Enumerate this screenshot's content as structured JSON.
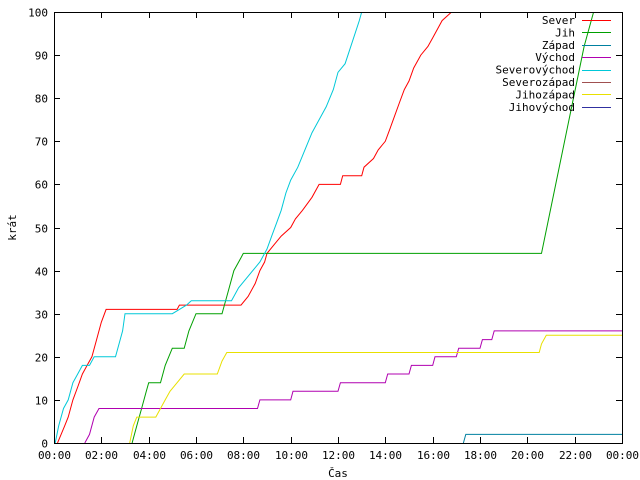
{
  "chart_data": {
    "type": "line",
    "title": "",
    "xlabel": "Čas",
    "ylabel": "krát",
    "xlim": [
      0,
      24
    ],
    "ylim": [
      0,
      100
    ],
    "x_ticks": [
      "00:00",
      "02:00",
      "04:00",
      "06:00",
      "08:00",
      "10:00",
      "12:00",
      "14:00",
      "16:00",
      "18:00",
      "20:00",
      "22:00",
      "00:00"
    ],
    "y_ticks": [
      "0",
      "10",
      "20",
      "30",
      "40",
      "50",
      "60",
      "70",
      "80",
      "90",
      "100"
    ],
    "grid": false,
    "legend_position": "top-right",
    "x_unit_note": "hours since 00:00",
    "series": [
      {
        "name": "Sever",
        "color": "#ff0000",
        "points": [
          [
            0.15,
            0
          ],
          [
            0.3,
            2
          ],
          [
            0.45,
            4
          ],
          [
            0.6,
            6
          ],
          [
            0.8,
            10
          ],
          [
            1.0,
            13
          ],
          [
            1.2,
            16
          ],
          [
            1.4,
            18
          ],
          [
            1.6,
            20
          ],
          [
            1.8,
            24
          ],
          [
            2.0,
            28
          ],
          [
            2.2,
            31
          ],
          [
            5.2,
            31
          ],
          [
            5.3,
            32
          ],
          [
            7.9,
            32
          ],
          [
            8.2,
            34
          ],
          [
            8.5,
            37
          ],
          [
            8.7,
            40
          ],
          [
            8.9,
            42
          ],
          [
            9.0,
            44
          ],
          [
            9.3,
            46
          ],
          [
            9.6,
            48
          ],
          [
            10.0,
            50
          ],
          [
            10.2,
            52
          ],
          [
            10.5,
            54
          ],
          [
            10.9,
            57
          ],
          [
            11.2,
            60
          ],
          [
            12.1,
            60
          ],
          [
            12.2,
            62
          ],
          [
            13.0,
            62
          ],
          [
            13.1,
            64
          ],
          [
            13.5,
            66
          ],
          [
            13.7,
            68
          ],
          [
            14.0,
            70
          ],
          [
            14.2,
            73
          ],
          [
            14.4,
            76
          ],
          [
            14.6,
            79
          ],
          [
            14.8,
            82
          ],
          [
            15.0,
            84
          ],
          [
            15.2,
            87
          ],
          [
            15.5,
            90
          ],
          [
            15.8,
            92
          ],
          [
            16.0,
            94
          ],
          [
            16.2,
            96
          ],
          [
            16.4,
            98
          ],
          [
            16.8,
            100
          ]
        ]
      },
      {
        "name": "Jih",
        "color": "#00a000",
        "points": [
          [
            3.3,
            0
          ],
          [
            3.5,
            4
          ],
          [
            3.7,
            8
          ],
          [
            3.9,
            12
          ],
          [
            4.0,
            14
          ],
          [
            4.5,
            14
          ],
          [
            4.7,
            18
          ],
          [
            5.0,
            22
          ],
          [
            5.5,
            22
          ],
          [
            5.7,
            26
          ],
          [
            6.0,
            30
          ],
          [
            7.1,
            30
          ],
          [
            7.3,
            34
          ],
          [
            7.6,
            40
          ],
          [
            7.9,
            43
          ],
          [
            8.0,
            44
          ],
          [
            20.6,
            44
          ],
          [
            20.9,
            52
          ],
          [
            21.2,
            60
          ],
          [
            21.5,
            68
          ],
          [
            21.8,
            76
          ],
          [
            22.1,
            84
          ],
          [
            22.4,
            92
          ],
          [
            22.8,
            100
          ]
        ]
      },
      {
        "name": "Západ",
        "color": "#0080a0",
        "points": [
          [
            17.3,
            0
          ],
          [
            17.4,
            2
          ],
          [
            24,
            2
          ]
        ]
      },
      {
        "name": "Východ",
        "color": "#b000b0",
        "points": [
          [
            1.3,
            0
          ],
          [
            1.5,
            2
          ],
          [
            1.7,
            6
          ],
          [
            1.9,
            8
          ],
          [
            8.6,
            8
          ],
          [
            8.7,
            10
          ],
          [
            10.0,
            10
          ],
          [
            10.1,
            12
          ],
          [
            12.0,
            12
          ],
          [
            12.1,
            14
          ],
          [
            14.0,
            14
          ],
          [
            14.1,
            16
          ],
          [
            15.0,
            16
          ],
          [
            15.1,
            18
          ],
          [
            16.0,
            18
          ],
          [
            16.1,
            20
          ],
          [
            17.0,
            20
          ],
          [
            17.1,
            22
          ],
          [
            18.0,
            22
          ],
          [
            18.1,
            24
          ],
          [
            18.5,
            24
          ],
          [
            18.6,
            26
          ],
          [
            24,
            26
          ]
        ]
      },
      {
        "name": "Severovýchod",
        "color": "#00c8d8",
        "points": [
          [
            0.05,
            0
          ],
          [
            0.2,
            4
          ],
          [
            0.4,
            8
          ],
          [
            0.6,
            10
          ],
          [
            0.8,
            14
          ],
          [
            1.0,
            16
          ],
          [
            1.2,
            18
          ],
          [
            1.5,
            18
          ],
          [
            1.7,
            20
          ],
          [
            2.6,
            20
          ],
          [
            2.9,
            26
          ],
          [
            3.0,
            30
          ],
          [
            5.0,
            30
          ],
          [
            5.3,
            31
          ],
          [
            5.6,
            32
          ],
          [
            5.8,
            33
          ],
          [
            7.5,
            33
          ],
          [
            7.8,
            36
          ],
          [
            8.1,
            38
          ],
          [
            8.4,
            40
          ],
          [
            8.7,
            42
          ],
          [
            9.0,
            45
          ],
          [
            9.2,
            48
          ],
          [
            9.4,
            51
          ],
          [
            9.6,
            54
          ],
          [
            9.8,
            58
          ],
          [
            10.0,
            61
          ],
          [
            10.3,
            64
          ],
          [
            10.6,
            68
          ],
          [
            10.9,
            72
          ],
          [
            11.2,
            75
          ],
          [
            11.5,
            78
          ],
          [
            11.8,
            82
          ],
          [
            12.0,
            86
          ],
          [
            12.3,
            88
          ],
          [
            12.6,
            93
          ],
          [
            12.9,
            98
          ],
          [
            13.0,
            100
          ]
        ]
      },
      {
        "name": "Severozápad",
        "color": "#a05050",
        "points": []
      },
      {
        "name": "Jihozápad",
        "color": "#e8e000",
        "points": [
          [
            3.2,
            0
          ],
          [
            3.35,
            4
          ],
          [
            3.5,
            6
          ],
          [
            4.3,
            6
          ],
          [
            4.5,
            8
          ],
          [
            4.7,
            10
          ],
          [
            4.9,
            12
          ],
          [
            5.2,
            14
          ],
          [
            5.5,
            16
          ],
          [
            6.9,
            16
          ],
          [
            7.1,
            19
          ],
          [
            7.3,
            21
          ],
          [
            20.5,
            21
          ],
          [
            20.6,
            23
          ],
          [
            20.8,
            25
          ],
          [
            24,
            25
          ]
        ]
      },
      {
        "name": "Jihovýchod",
        "color": "#3030a0",
        "points": []
      }
    ]
  }
}
